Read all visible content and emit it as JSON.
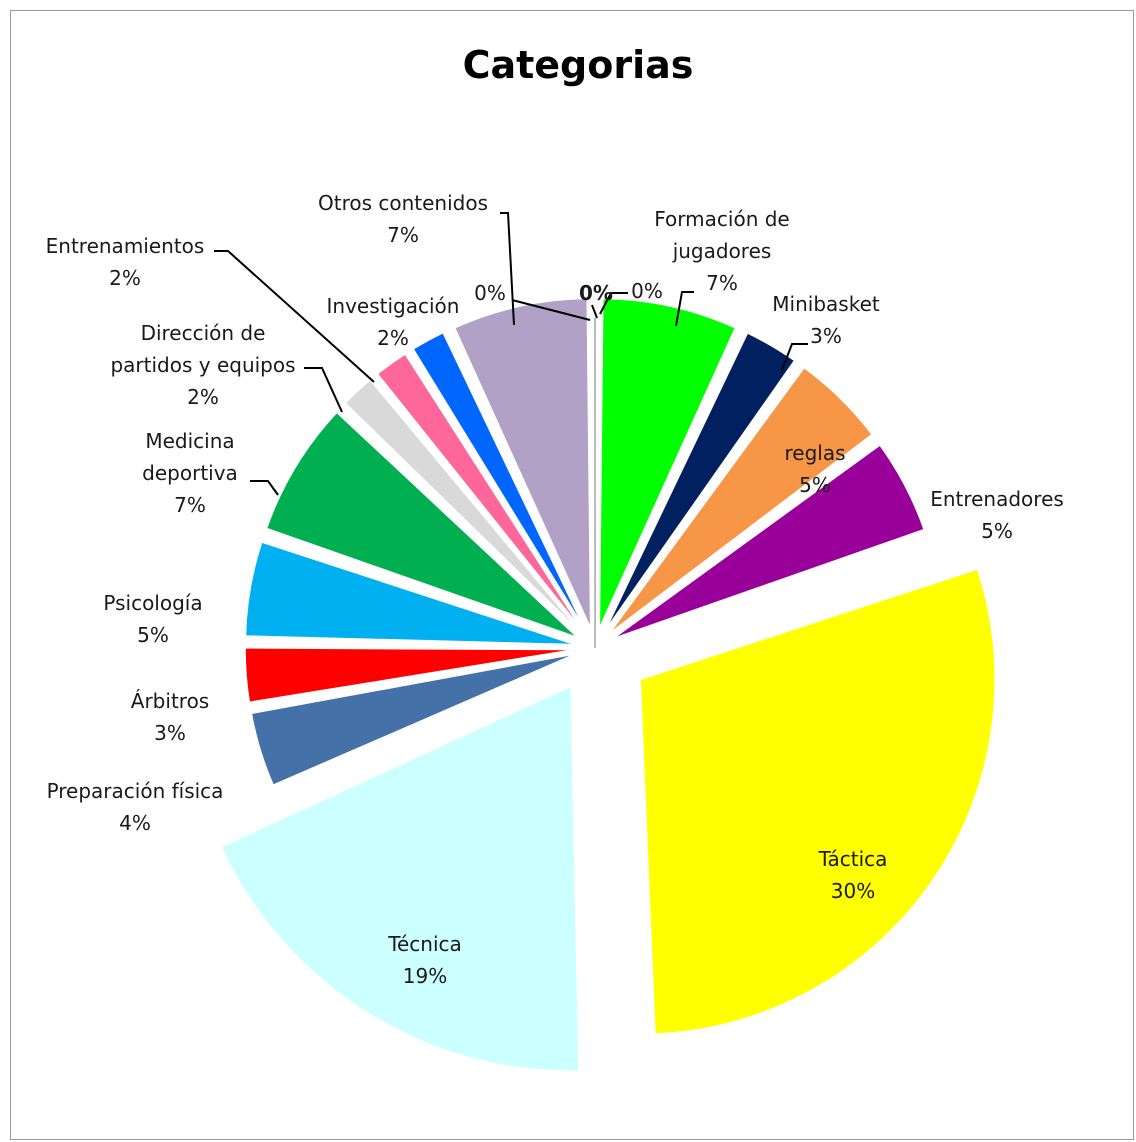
{
  "chart_data": {
    "type": "pie",
    "title": "Categorias",
    "legend": "none",
    "slices": [
      {
        "label": "Formación de jugadores",
        "label_lines": [
          "Formación de",
          "jugadores"
        ],
        "value_text": "7%",
        "value": 7,
        "color": "#00ff00"
      },
      {
        "label": "Minibasket",
        "label_lines": [
          "Minibasket"
        ],
        "value_text": "3%",
        "value": 3,
        "color": "#002060"
      },
      {
        "label": "reglas",
        "label_lines": [
          "reglas"
        ],
        "value_text": "5%",
        "value": 5,
        "color": "#f79646"
      },
      {
        "label": "Entrenadores",
        "label_lines": [
          "Entrenadores"
        ],
        "value_text": "5%",
        "value": 5,
        "color": "#990099"
      },
      {
        "label": "Táctica",
        "label_lines": [
          "Táctica"
        ],
        "value_text": "30%",
        "value": 30,
        "color": "#ffff00"
      },
      {
        "label": "Técnica",
        "label_lines": [
          "Técnica"
        ],
        "value_text": "19%",
        "value": 19,
        "color": "#ccffff"
      },
      {
        "label": "Preparación física",
        "label_lines": [
          "Preparación física"
        ],
        "value_text": "4%",
        "value": 4,
        "color": "#4472a8"
      },
      {
        "label": "Árbitros",
        "label_lines": [
          "Árbitros"
        ],
        "value_text": "3%",
        "value": 3,
        "color": "#ff0000"
      },
      {
        "label": "Psicología",
        "label_lines": [
          "Psicología"
        ],
        "value_text": "5%",
        "value": 5,
        "color": "#00b0f0"
      },
      {
        "label": "Medicina deportiva",
        "label_lines": [
          "Medicina",
          "deportiva"
        ],
        "value_text": "7%",
        "value": 7,
        "color": "#00b050"
      },
      {
        "label": "Dirección de partidos y equipos",
        "label_lines": [
          "Dirección de",
          "partidos y equipos"
        ],
        "value_text": "2%",
        "value": 2,
        "color": "#d9d9d9"
      },
      {
        "label": "Entrenamientos",
        "label_lines": [
          "Entrenamientos"
        ],
        "value_text": "2%",
        "value": 2,
        "color": "#ff6699"
      },
      {
        "label": "Investigación",
        "label_lines": [
          "Investigación"
        ],
        "value_text": "2%",
        "value": 2,
        "color": "#0066ff"
      },
      {
        "label": "Otros contenidos",
        "label_lines": [
          "Otros contenidos"
        ],
        "value_text": "7%",
        "value": 7,
        "color": "#b2a1c7"
      },
      {
        "label": "",
        "label_lines": [],
        "value_text": "0%",
        "value": 0,
        "color": "#c0c0c0"
      },
      {
        "label": "",
        "label_lines": [],
        "value_text": "0%",
        "value": 0,
        "color": "#c0c0c0"
      },
      {
        "label": "",
        "label_lines": [],
        "value_text": "0%",
        "value": 0,
        "color": "#c0c0c0"
      }
    ]
  }
}
